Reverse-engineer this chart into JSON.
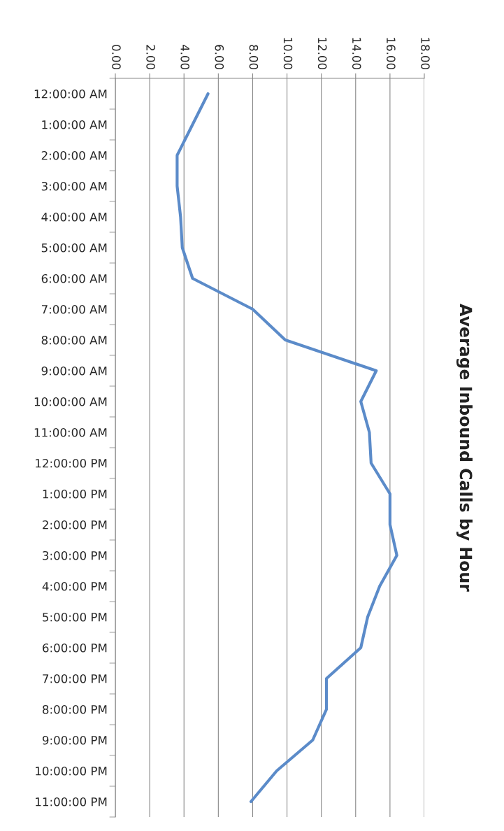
{
  "chart_data": {
    "type": "line",
    "orientation": "horizontal",
    "title": "Average Inbound Calls by Hour",
    "categories": [
      "12:00:00 AM",
      "1:00:00 AM",
      "2:00:00 AM",
      "3:00:00 AM",
      "4:00:00 AM",
      "5:00:00 AM",
      "6:00:00 AM",
      "7:00:00 AM",
      "8:00:00 AM",
      "9:00:00 AM",
      "10:00:00 AM",
      "11:00:00 AM",
      "12:00:00 PM",
      "1:00:00 PM",
      "2:00:00 PM",
      "3:00:00 PM",
      "4:00:00 PM",
      "5:00:00 PM",
      "6:00:00 PM",
      "7:00:00 PM",
      "8:00:00 PM",
      "9:00:00 PM",
      "10:00:00 PM",
      "11:00:00 PM"
    ],
    "series": [
      {
        "color": "#5b8bc9",
        "values": [
          5.4,
          4.5,
          3.6,
          3.6,
          3.8,
          3.9,
          4.5,
          8.0,
          9.9,
          15.2,
          14.3,
          14.8,
          14.9,
          16.0,
          16.0,
          16.4,
          15.4,
          14.7,
          14.3,
          12.3,
          12.3,
          11.5,
          9.4,
          7.9
        ]
      }
    ],
    "xlim": [
      0,
      18
    ],
    "xticks": [
      {
        "value": 0,
        "label": "0.00"
      },
      {
        "value": 2,
        "label": "2.00"
      },
      {
        "value": 4,
        "label": "4.00"
      },
      {
        "value": 6,
        "label": "6.00"
      },
      {
        "value": 8,
        "label": "8.00"
      },
      {
        "value": 10,
        "label": "10.00"
      },
      {
        "value": 12,
        "label": "12.00"
      },
      {
        "value": 14,
        "label": "14.00"
      },
      {
        "value": 16,
        "label": "16.00"
      },
      {
        "value": 18,
        "label": "18.00"
      }
    ],
    "grid": "x"
  }
}
